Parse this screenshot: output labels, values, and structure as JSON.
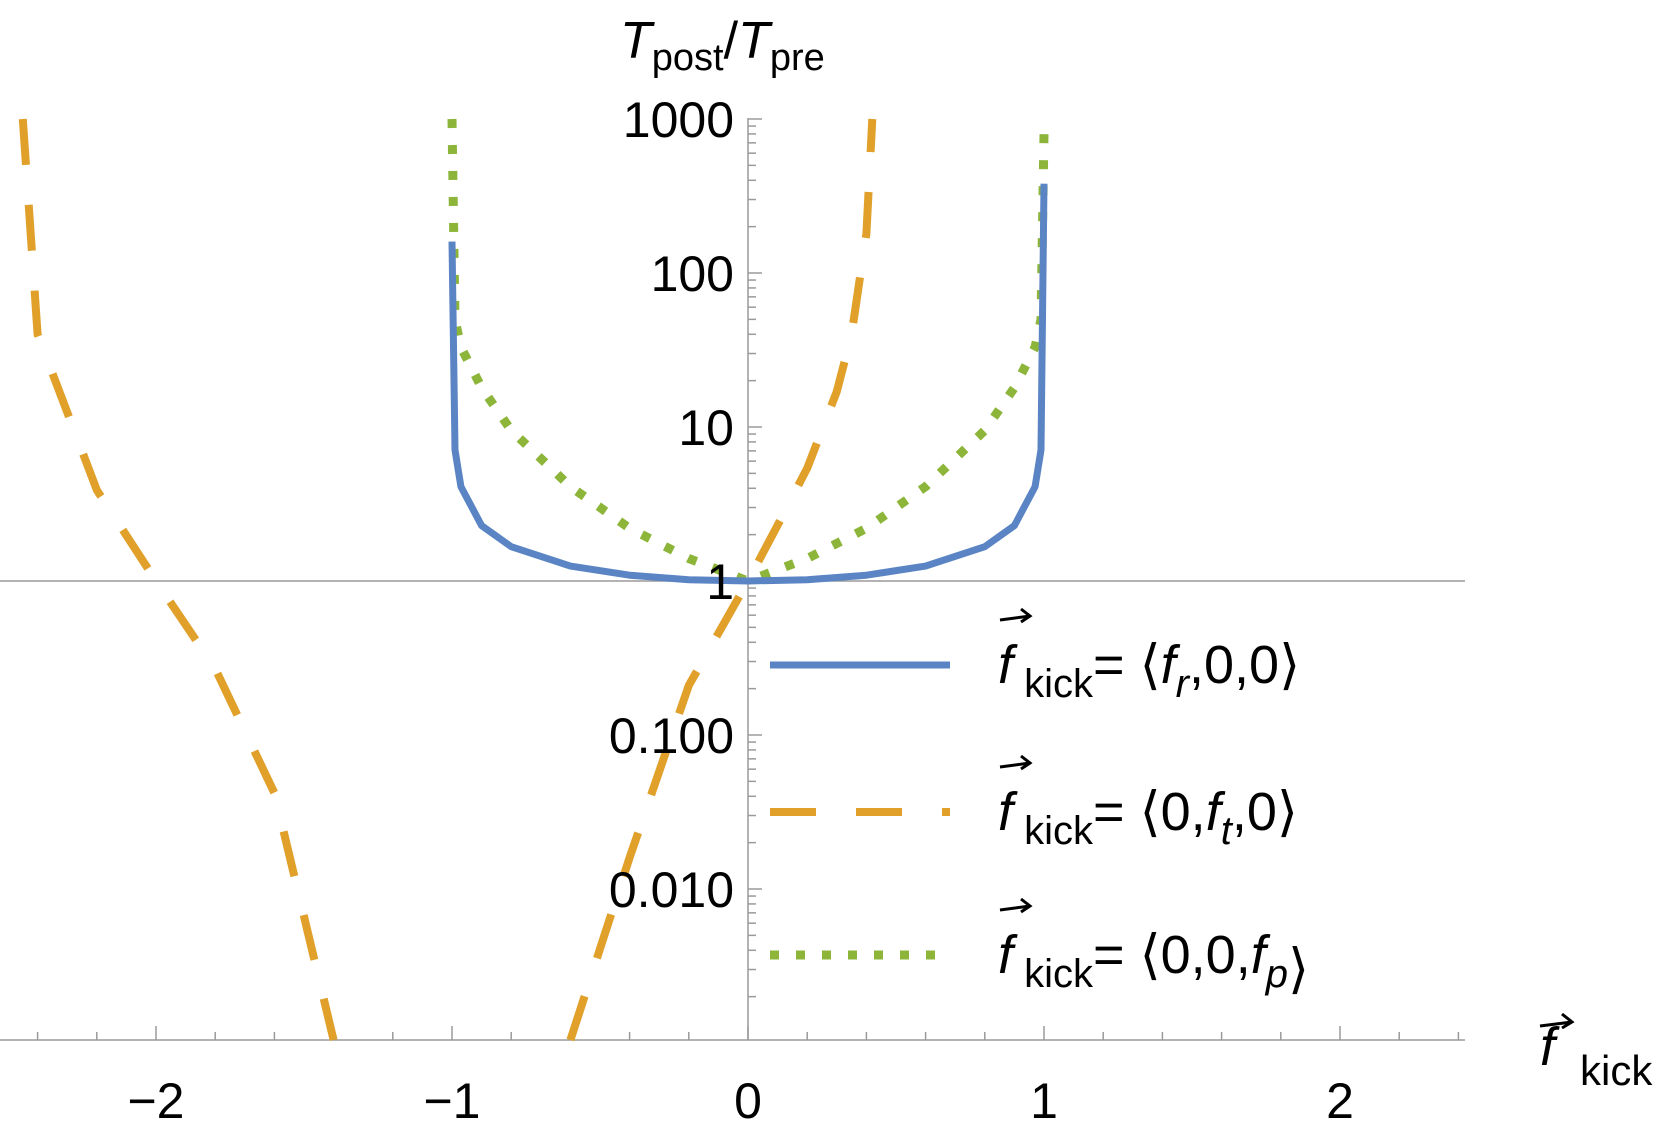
{
  "chart_data": {
    "type": "line",
    "title": "",
    "xlabel": {
      "vector": "f",
      "sub": "kick"
    },
    "ylabel": {
      "num": "T",
      "num_sub": "post",
      "den": "T",
      "den_sub": "pre"
    },
    "xlim": [
      -2.5,
      2.4
    ],
    "ylim": [
      0.0005,
      1000
    ],
    "yscale": "log",
    "grid": false,
    "legend_position": "right-center",
    "xticks": [
      {
        "value": -2,
        "label": "−2"
      },
      {
        "value": -1,
        "label": "−1"
      },
      {
        "value": 0,
        "label": "0"
      },
      {
        "value": 1,
        "label": "1"
      },
      {
        "value": 2,
        "label": "2"
      }
    ],
    "yticks": [
      {
        "value": 1000,
        "label": "1000"
      },
      {
        "value": 100,
        "label": "100"
      },
      {
        "value": 10,
        "label": "10"
      },
      {
        "value": 1,
        "label": "1"
      },
      {
        "value": 0.1,
        "label": "0.100"
      },
      {
        "value": 0.01,
        "label": "0.010"
      }
    ],
    "series": [
      {
        "legend": {
          "vec": "f",
          "sub": "kick",
          "eq": "= ",
          "open": "⟨",
          "a": "f",
          "a_sub": "r",
          "rest": ",0,0",
          "close": "⟩"
        },
        "color": "#5b84c4",
        "style": "solid",
        "x": [
          -1.0,
          -0.99,
          -0.97,
          -0.9,
          -0.8,
          -0.6,
          -0.4,
          -0.2,
          0.0,
          0.2,
          0.4,
          0.6,
          0.8,
          0.9,
          0.97,
          0.99,
          1.0
        ],
        "y": [
          160,
          7.1,
          4.1,
          2.29,
          1.67,
          1.25,
          1.09,
          1.02,
          1.0,
          1.02,
          1.09,
          1.25,
          1.67,
          2.29,
          4.1,
          7.1,
          380
        ]
      },
      {
        "legend": {
          "vec": "f",
          "sub": "kick",
          "eq": "= ",
          "open": "⟨",
          "a": "0,",
          "a_sub": "",
          "mid": "f",
          "mid_sub": "t",
          "rest": ",0",
          "close": "⟩"
        },
        "color": "#e0a02a",
        "style": "dashed",
        "x": [
          -2.45,
          -2.4,
          -2.2,
          -2.0,
          -1.8,
          -1.6,
          -1.4,
          -0.6,
          -0.4,
          -0.2,
          0.0,
          0.1,
          0.2,
          0.3,
          0.35,
          0.4,
          0.42
        ],
        "y": [
          1000,
          40,
          3.9,
          1.0,
          0.27,
          0.042,
          0.0005,
          0.0005,
          0.016,
          0.21,
          1.0,
          2.3,
          5.4,
          17,
          40,
          180,
          1000
        ]
      },
      {
        "legend": {
          "vec": "f",
          "sub": "kick",
          "eq": "= ",
          "open": "⟨",
          "a": "0,0,",
          "a_sub": "",
          "mid": "f",
          "mid_sub": "p",
          "rest": "",
          "close": "⟩"
        },
        "color": "#8cb53a",
        "style": "dotted",
        "x": [
          -1.0,
          -0.99,
          -0.97,
          -0.9,
          -0.8,
          -0.6,
          -0.4,
          -0.2,
          0.0,
          0.2,
          0.4,
          0.6,
          0.8,
          0.9,
          0.97,
          0.99,
          1.0
        ],
        "y": [
          1000,
          50,
          33,
          18,
          9.5,
          4.1,
          2.2,
          1.4,
          1.0,
          1.4,
          2.2,
          4.1,
          9.5,
          18,
          33,
          50,
          800
        ]
      }
    ]
  }
}
